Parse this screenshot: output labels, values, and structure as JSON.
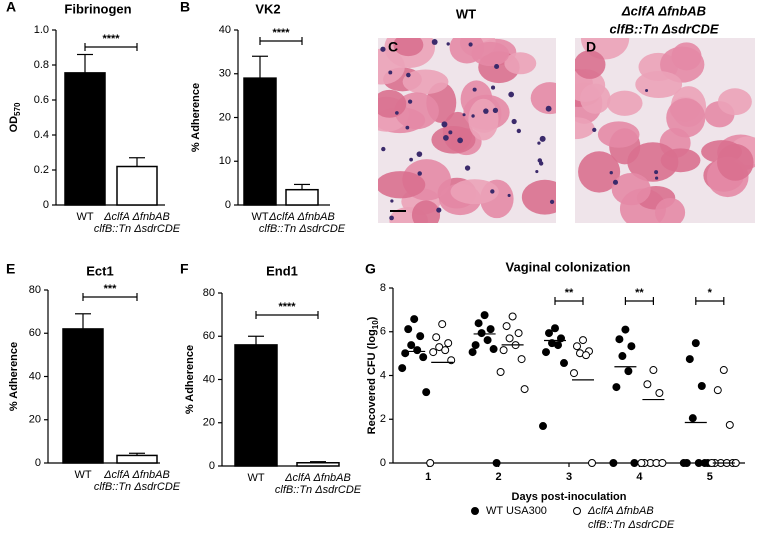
{
  "chart_data": [
    {
      "type": "bar",
      "panel": "A",
      "title": "Fibrinogen",
      "ylabel": [
        "OD",
        "570"
      ],
      "categories": [
        [
          "WT"
        ],
        [
          "ΔclfA ΔfnbAB",
          "clfB::Tn ΔsdrCDE"
        ]
      ],
      "values": [
        0.755,
        0.22
      ],
      "errors": [
        0.105,
        0.05
      ],
      "colors": [
        "#000000",
        "#ffffff"
      ],
      "ylim": [
        0,
        1
      ],
      "yticks": [
        0,
        0.2,
        0.4,
        0.6,
        0.8,
        {
          "value": 1,
          "label": "1.0"
        }
      ],
      "significance": "****"
    },
    {
      "type": "bar",
      "panel": "B",
      "title": "VK2",
      "ylabel": [
        "% Adherence"
      ],
      "categories": [
        [
          "WT"
        ],
        [
          "ΔclfA ΔfnbAB",
          "clfB::Tn ΔsdrCDE"
        ]
      ],
      "values": [
        29,
        3.5
      ],
      "errors": [
        5,
        1.2
      ],
      "colors": [
        "#000000",
        "#ffffff"
      ],
      "ylim": [
        0,
        40
      ],
      "yticks": [
        0,
        10,
        20,
        30,
        40
      ],
      "significance": "****"
    },
    {
      "type": "bar",
      "panel": "E",
      "title": "Ect1",
      "ylabel": [
        "% Adherence"
      ],
      "categories": [
        [
          "WT"
        ],
        [
          "ΔclfA ΔfnbAB",
          "clfB::Tn ΔsdrCDE"
        ]
      ],
      "values": [
        62,
        3.5
      ],
      "errors": [
        7,
        1
      ],
      "colors": [
        "#000000",
        "#ffffff"
      ],
      "ylim": [
        0,
        80
      ],
      "yticks": [
        0,
        20,
        40,
        60,
        80
      ],
      "significance": "***"
    },
    {
      "type": "bar",
      "panel": "F",
      "title": "End1",
      "ylabel": [
        "% Adherence"
      ],
      "categories": [
        [
          "WT"
        ],
        [
          "ΔclfA ΔfnbAB",
          "clfB::Tn ΔsdrCDE"
        ]
      ],
      "values": [
        56,
        1.5
      ],
      "errors": [
        4,
        0.5
      ],
      "colors": [
        "#000000",
        "#ffffff"
      ],
      "ylim": [
        0,
        80
      ],
      "yticks": [
        0,
        20,
        40,
        60,
        80
      ],
      "significance": "****"
    },
    {
      "type": "scatter",
      "panel": "G",
      "title": "Vaginal colonization",
      "xlabel": "Days post-inoculation",
      "ylabel": [
        "Recovered CFU (log",
        "10",
        ")"
      ],
      "x": [
        1,
        2,
        3,
        4,
        5
      ],
      "xlim": [
        0.5,
        5.5
      ],
      "xticks": [
        1,
        2,
        3,
        4,
        5
      ],
      "ylim": [
        0,
        8
      ],
      "yticks": [
        0,
        2,
        4,
        6,
        8
      ],
      "series": [
        {
          "name": [
            "WT USA300"
          ],
          "color": "#000000",
          "values": [
            [
              6.58,
              6.12,
              5.8,
              5.39,
              5.16,
              5.02,
              4.84,
              4.34,
              3.24
            ],
            [
              6.76,
              6.39,
              6.12,
              5.94,
              5.62,
              5.39,
              5.21,
              5.07,
              0
            ],
            [
              6.16,
              5.94,
              5.7,
              5.48,
              5.39,
              5.07,
              4.57,
              1.69
            ],
            [
              6.1,
              5.66,
              5.34,
              4.89,
              4.2,
              3.47,
              0,
              0
            ],
            [
              5.48,
              4.75,
              3.52,
              2.05,
              0,
              0,
              0,
              0,
              0
            ]
          ],
          "medians": [
            5.1,
            5.9,
            5.6,
            4.4,
            1.85
          ]
        },
        {
          "name": [
            "ΔclfA ΔfnbAB",
            "clfB::Tn ΔsdrCDE"
          ],
          "color": "#ffffff",
          "values": [
            [
              6.35,
              5.75,
              5.48,
              5.3,
              5.16,
              5.07,
              4.7,
              0
            ],
            [
              6.7,
              6.26,
              5.94,
              5.7,
              5.39,
              5.16,
              4.75,
              4.16,
              3.38
            ],
            [
              5.62,
              5.34,
              5.11,
              5.02,
              4.93,
              4.11,
              0
            ],
            [
              4.25,
              3.6,
              3.2,
              0,
              0,
              0,
              0,
              0
            ],
            [
              4.25,
              3.33,
              1.74,
              0,
              0,
              0,
              0,
              0,
              0
            ]
          ],
          "medians": [
            4.6,
            5.4,
            3.8,
            2.9,
            0
          ]
        }
      ],
      "significance": [
        {
          "x": 3,
          "label": "**"
        },
        {
          "x": 4,
          "label": "**"
        },
        {
          "x": 5,
          "label": "*"
        }
      ]
    }
  ],
  "images": [
    {
      "panel": "C",
      "title": [
        "WT"
      ]
    },
    {
      "panel": "D",
      "title": [
        "ΔclfA ΔfnbAB",
        "clfB::Tn ΔsdrCDE"
      ]
    }
  ]
}
